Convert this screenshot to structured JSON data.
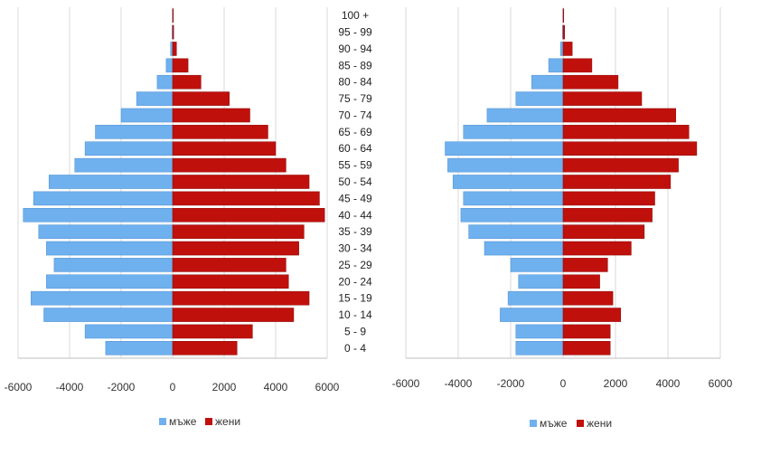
{
  "colors": {
    "male": "#6fb0ee",
    "male_stroke": "#4d8fd0",
    "female": "#c0100c",
    "female_stroke": "#8e0a08",
    "grid": "#d9d9d9",
    "axis": "#bfbfbf"
  },
  "legend": {
    "male": "мъже",
    "female": "жени"
  },
  "chart_data": [
    {
      "type": "bar",
      "orientation": "horizontal",
      "grid": true,
      "legend_position": "bottom",
      "xlim": [
        -6000,
        6000
      ],
      "xticks": [
        "-6000",
        "-4000",
        "-2000",
        "0",
        "2000",
        "4000",
        "6000"
      ],
      "categories": [
        "0 - 4",
        "5 - 9",
        "10 - 14",
        "15 - 19",
        "20 - 24",
        "25 - 29",
        "30 - 34",
        "35 - 39",
        "40 - 44",
        "45 - 49",
        "50 - 54",
        "55 - 59",
        "60 - 64",
        "65 - 69",
        "70 - 74",
        "75 - 79",
        "80 - 84",
        "85 - 89",
        "90 - 94",
        "95 - 99",
        "100 +"
      ],
      "series": [
        {
          "name": "мъже",
          "values": [
            -2600,
            -3400,
            -5000,
            -5500,
            -4900,
            -4600,
            -4900,
            -5200,
            -5800,
            -5400,
            -4800,
            -3800,
            -3400,
            -3000,
            -2000,
            -1400,
            -600,
            -250,
            -80,
            -20,
            -5
          ]
        },
        {
          "name": "жени",
          "values": [
            2500,
            3100,
            4700,
            5300,
            4500,
            4400,
            4900,
            5100,
            5900,
            5700,
            5300,
            4400,
            4000,
            3700,
            3000,
            2200,
            1100,
            600,
            150,
            40,
            10
          ]
        }
      ]
    },
    {
      "type": "bar",
      "orientation": "horizontal",
      "grid": true,
      "legend_position": "bottom",
      "xlim": [
        -6000,
        6000
      ],
      "xticks": [
        "-6000",
        "-4000",
        "-2000",
        "0",
        "2000",
        "4000",
        "6000"
      ],
      "categories": [
        "0 - 4",
        "5 - 9",
        "10 - 14",
        "15 - 19",
        "20 - 24",
        "25 - 29",
        "30 - 34",
        "35 - 39",
        "40 - 44",
        "45 - 49",
        "50 - 54",
        "55 - 59",
        "60 - 64",
        "65 - 69",
        "70 - 74",
        "75 - 79",
        "80 - 84",
        "85 - 89",
        "90 - 94",
        "95 - 99",
        "100 +"
      ],
      "series": [
        {
          "name": "мъже",
          "values": [
            -1800,
            -1800,
            -2400,
            -2100,
            -1700,
            -2000,
            -3000,
            -3600,
            -3900,
            -3800,
            -4200,
            -4400,
            -4500,
            -3800,
            -2900,
            -1800,
            -1200,
            -550,
            -100,
            -20,
            -5
          ]
        },
        {
          "name": "жени",
          "values": [
            1800,
            1800,
            2200,
            1900,
            1400,
            1700,
            2600,
            3100,
            3400,
            3500,
            4100,
            4400,
            5100,
            4800,
            4300,
            3000,
            2100,
            1100,
            350,
            60,
            15
          ]
        }
      ]
    }
  ]
}
